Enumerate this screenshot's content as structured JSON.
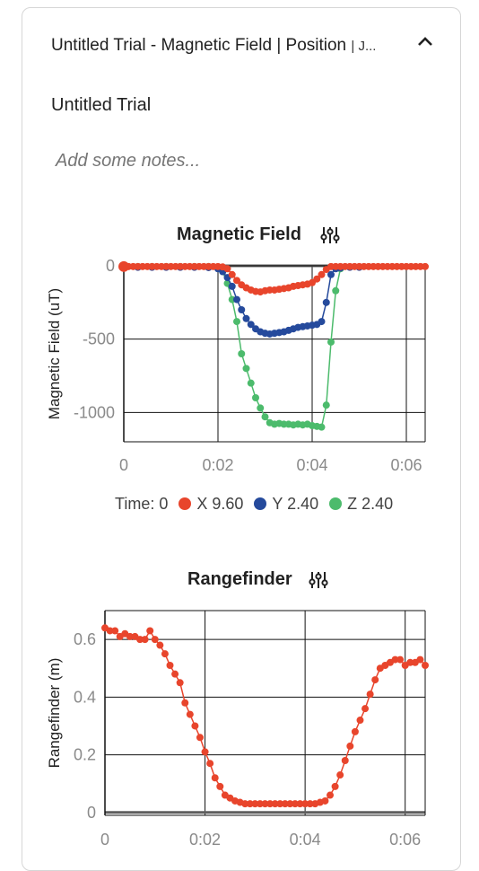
{
  "header": {
    "title": "Untitled Trial - Magnetic Field | Position",
    "suffix": "| J..."
  },
  "trial_name": "Untitled Trial",
  "notes_placeholder": "Add some notes...",
  "legend": {
    "time": "Time: 0",
    "x": "X 9.60",
    "y": "Y 2.40",
    "z": "Z 2.40"
  },
  "colors": {
    "x": "#e8452c",
    "y": "#254a9c",
    "z": "#4cbb6c",
    "accent": "#e8452c"
  },
  "icons": {
    "collapse": "chevron-up-icon",
    "tune": "tune-sliders-icon"
  },
  "chart_data": [
    {
      "type": "line",
      "title": "Magnetic Field",
      "ylabel": "Magnetic Field (uT)",
      "xlabel": "",
      "xlim": [
        0,
        6.4
      ],
      "ylim": [
        -1200,
        0
      ],
      "x_ticks": [
        0,
        2,
        4,
        6
      ],
      "x_tick_labels": [
        "0",
        "0:02",
        "0:04",
        "0:06"
      ],
      "y_ticks": [
        0,
        -500,
        -1000
      ],
      "y_tick_labels": [
        "0",
        "-500",
        "-1000"
      ],
      "grid": true,
      "series": [
        {
          "name": "X",
          "x": [
            0,
            0.1,
            0.2,
            0.3,
            0.4,
            0.5,
            0.6,
            0.7,
            0.8,
            0.9,
            1.0,
            1.1,
            1.2,
            1.3,
            1.4,
            1.5,
            1.6,
            1.7,
            1.8,
            1.9,
            2.0,
            2.1,
            2.2,
            2.3,
            2.4,
            2.5,
            2.6,
            2.7,
            2.8,
            2.9,
            3.0,
            3.1,
            3.2,
            3.3,
            3.4,
            3.5,
            3.6,
            3.7,
            3.8,
            3.9,
            4.0,
            4.1,
            4.2,
            4.3,
            4.4,
            4.5,
            4.6,
            4.7,
            4.8,
            4.9,
            5.0,
            5.1,
            5.2,
            5.3,
            5.4,
            5.5,
            5.6,
            5.7,
            5.8,
            5.9,
            6.0,
            6.1,
            6.2,
            6.3,
            6.4
          ],
          "values": [
            -5,
            -5,
            -5,
            -5,
            -5,
            -5,
            -5,
            -5,
            -5,
            -5,
            -5,
            -5,
            -5,
            -5,
            -5,
            -5,
            -5,
            -5,
            -5,
            -5,
            -5,
            -8,
            -20,
            -60,
            -100,
            -130,
            -150,
            -165,
            -175,
            -178,
            -170,
            -165,
            -165,
            -160,
            -155,
            -150,
            -140,
            -135,
            -130,
            -125,
            -115,
            -90,
            -60,
            -25,
            -5,
            -5,
            -5,
            -5,
            -5,
            -5,
            -5,
            -5,
            -5,
            -5,
            -5,
            -5,
            -5,
            -5,
            -5,
            -5,
            -5,
            -5,
            -5,
            -5,
            -5
          ]
        },
        {
          "name": "Y",
          "x": [
            0,
            0.3,
            0.6,
            0.9,
            1.2,
            1.5,
            1.8,
            2.0,
            2.1,
            2.2,
            2.3,
            2.4,
            2.5,
            2.6,
            2.7,
            2.8,
            2.9,
            3.0,
            3.1,
            3.2,
            3.3,
            3.4,
            3.5,
            3.6,
            3.7,
            3.8,
            3.9,
            4.0,
            4.1,
            4.2,
            4.3,
            4.4,
            4.5,
            4.6,
            4.8,
            5.0
          ],
          "values": [
            -10,
            -10,
            -10,
            -10,
            -10,
            -10,
            -12,
            -20,
            -40,
            -80,
            -140,
            -230,
            -300,
            -360,
            -400,
            -430,
            -450,
            -460,
            -465,
            -460,
            -455,
            -450,
            -440,
            -430,
            -420,
            -415,
            -410,
            -405,
            -400,
            -380,
            -250,
            -60,
            -20,
            -15,
            -10,
            -10
          ]
        },
        {
          "name": "Z",
          "x": [
            0,
            0.3,
            0.6,
            0.9,
            1.2,
            1.5,
            1.8,
            2.0,
            2.1,
            2.2,
            2.3,
            2.4,
            2.5,
            2.6,
            2.7,
            2.8,
            2.9,
            3.0,
            3.1,
            3.2,
            3.3,
            3.4,
            3.5,
            3.6,
            3.7,
            3.8,
            3.9,
            4.0,
            4.1,
            4.2,
            4.3,
            4.4,
            4.5,
            4.6
          ],
          "values": [
            -5,
            -5,
            -5,
            -5,
            -5,
            -5,
            -5,
            -10,
            -40,
            -120,
            -230,
            -380,
            -600,
            -700,
            -800,
            -900,
            -970,
            -1030,
            -1070,
            -1080,
            -1075,
            -1080,
            -1080,
            -1085,
            -1080,
            -1085,
            -1080,
            -1090,
            -1095,
            -1100,
            -950,
            -520,
            -170,
            -20
          ]
        }
      ]
    },
    {
      "type": "line",
      "title": "Rangefinder",
      "ylabel": "Rangefinder (m)",
      "xlabel": "",
      "xlim": [
        0,
        0.064
      ],
      "ylim": [
        -0.01,
        0.7
      ],
      "x_ticks": [
        0,
        0.02,
        0.04,
        0.06
      ],
      "x_tick_labels": [
        "0",
        "0:02",
        "0:04",
        "0:06"
      ],
      "y_ticks": [
        0,
        0.2,
        0.4,
        0.6
      ],
      "y_tick_labels": [
        "0",
        "0.2",
        "0.4",
        "0.6"
      ],
      "grid": true,
      "series": [
        {
          "name": "Position",
          "x": [
            0,
            0.001,
            0.002,
            0.003,
            0.004,
            0.005,
            0.006,
            0.007,
            0.008,
            0.009,
            0.01,
            0.011,
            0.012,
            0.013,
            0.014,
            0.015,
            0.016,
            0.017,
            0.018,
            0.019,
            0.02,
            0.021,
            0.022,
            0.023,
            0.024,
            0.025,
            0.026,
            0.027,
            0.028,
            0.029,
            0.03,
            0.031,
            0.032,
            0.033,
            0.034,
            0.035,
            0.036,
            0.037,
            0.038,
            0.039,
            0.04,
            0.041,
            0.042,
            0.043,
            0.044,
            0.045,
            0.046,
            0.047,
            0.048,
            0.049,
            0.05,
            0.051,
            0.052,
            0.053,
            0.054,
            0.055,
            0.056,
            0.057,
            0.058,
            0.059,
            0.06,
            0.061,
            0.062,
            0.063,
            0.064
          ],
          "values": [
            0.64,
            0.63,
            0.63,
            0.61,
            0.62,
            0.61,
            0.61,
            0.6,
            0.6,
            0.63,
            0.6,
            0.58,
            0.55,
            0.51,
            0.48,
            0.45,
            0.38,
            0.34,
            0.3,
            0.26,
            0.21,
            0.17,
            0.12,
            0.09,
            0.06,
            0.05,
            0.04,
            0.035,
            0.03,
            0.03,
            0.03,
            0.03,
            0.03,
            0.03,
            0.03,
            0.03,
            0.03,
            0.03,
            0.03,
            0.03,
            0.03,
            0.03,
            0.03,
            0.035,
            0.04,
            0.06,
            0.09,
            0.13,
            0.18,
            0.23,
            0.28,
            0.32,
            0.36,
            0.41,
            0.46,
            0.5,
            0.51,
            0.52,
            0.53,
            0.53,
            0.51,
            0.52,
            0.52,
            0.53,
            0.51
          ]
        }
      ]
    }
  ]
}
